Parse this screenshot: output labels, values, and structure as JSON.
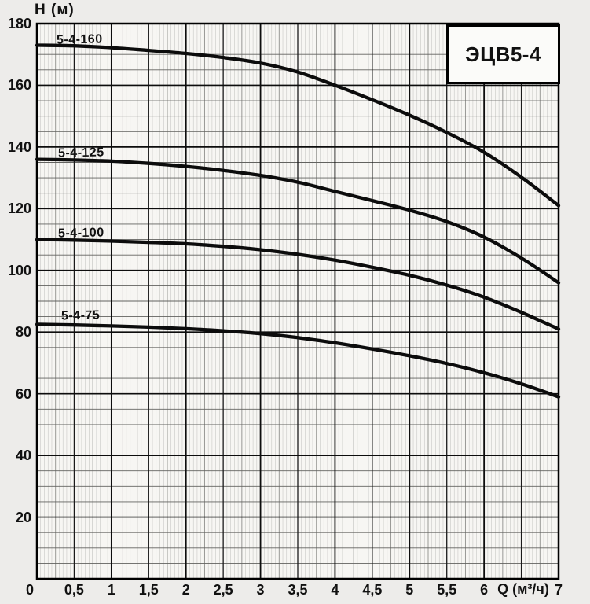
{
  "title_box": {
    "label": "ЭЦВ5-4"
  },
  "axes": {
    "y_title": "H (м)",
    "x_title": "Q (м³/ч)"
  },
  "chart_data": {
    "type": "line",
    "title": "ЭЦВ5-4",
    "xlabel": "Q (м³/ч)",
    "ylabel": "H (м)",
    "xlim": [
      0,
      7
    ],
    "ylim": [
      0,
      180
    ],
    "x_major_step": 0.5,
    "y_major_step": 20,
    "grid": "fine engineering graph paper: vertical minors every 0.05, verticals bold every 0.5 and 1.0; horizontal minors every 5, bold every 20",
    "legend_position": "labels above each curve at left",
    "x": [
      0,
      0.5,
      1,
      1.5,
      2,
      2.5,
      3,
      3.5,
      4,
      4.5,
      5,
      5.5,
      6,
      6.5,
      7
    ],
    "series": [
      {
        "name": "5-4-160",
        "values": [
          173,
          172.8,
          172.2,
          171.3,
          170.3,
          169,
          167.2,
          164.3,
          160,
          155.3,
          150.3,
          144.7,
          138.3,
          130.2,
          121
        ]
      },
      {
        "name": "5-4-125",
        "values": [
          136,
          135.8,
          135.4,
          134.7,
          133.7,
          132.4,
          130.8,
          128.6,
          125.6,
          122.6,
          119.5,
          115.8,
          110.8,
          104,
          96
        ]
      },
      {
        "name": "5-4-100",
        "values": [
          110,
          109.8,
          109.5,
          109.1,
          108.6,
          107.8,
          106.7,
          105.2,
          103.3,
          101,
          98.4,
          95.2,
          91.3,
          86.4,
          81
        ]
      },
      {
        "name": "5-4-75",
        "values": [
          82.5,
          82.3,
          82,
          81.6,
          81.1,
          80.4,
          79.5,
          78.2,
          76.5,
          74.5,
          72.3,
          69.8,
          66.8,
          63.2,
          59
        ]
      }
    ],
    "x_tick_labels": [
      {
        "q": 0,
        "t": "0"
      },
      {
        "q": 0.5,
        "t": "0,5"
      },
      {
        "q": 1,
        "t": "1"
      },
      {
        "q": 1.5,
        "t": "1,5"
      },
      {
        "q": 2,
        "t": "2"
      },
      {
        "q": 2.5,
        "t": "2,5"
      },
      {
        "q": 3,
        "t": "3"
      },
      {
        "q": 3.5,
        "t": "3,5"
      },
      {
        "q": 4,
        "t": "4"
      },
      {
        "q": 4.5,
        "t": "4,5"
      },
      {
        "q": 5,
        "t": "5"
      },
      {
        "q": 5.5,
        "t": "5,5"
      },
      {
        "q": 6,
        "t": "6"
      },
      {
        "q": 7,
        "t": "7"
      }
    ],
    "y_tick_labels": [
      {
        "h": 180,
        "t": "180"
      },
      {
        "h": 160,
        "t": "160"
      },
      {
        "h": 140,
        "t": "140"
      },
      {
        "h": 120,
        "t": "120"
      },
      {
        "h": 100,
        "t": "100"
      },
      {
        "h": 80,
        "t": "80"
      },
      {
        "h": 60,
        "t": "60"
      },
      {
        "h": 40,
        "t": "40"
      },
      {
        "h": 20,
        "t": "20"
      }
    ],
    "colors": {
      "curve": "#0c0c0c",
      "paper": "#f7f6f3",
      "grid_fine": "#c3c3c0",
      "grid_medium": "#8f8f8c",
      "grid_bold": "#1a1a1a",
      "frame": "#000000"
    }
  }
}
